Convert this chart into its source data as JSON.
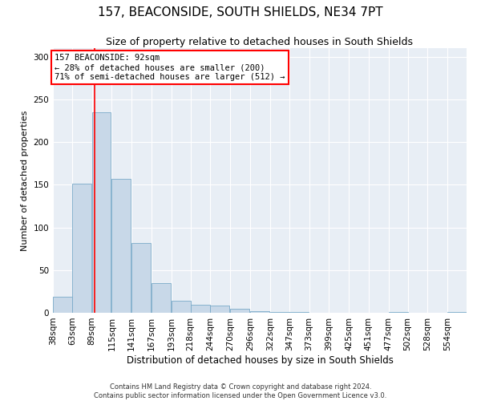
{
  "title": "157, BEACONSIDE, SOUTH SHIELDS, NE34 7PT",
  "subtitle": "Size of property relative to detached houses in South Shields",
  "xlabel": "Distribution of detached houses by size in South Shields",
  "ylabel": "Number of detached properties",
  "footer_line1": "Contains HM Land Registry data © Crown copyright and database right 2024.",
  "footer_line2": "Contains public sector information licensed under the Open Government Licence v3.0.",
  "bar_edges": [
    38,
    63,
    89,
    115,
    141,
    167,
    193,
    218,
    244,
    270,
    296,
    322,
    347,
    373,
    399,
    425,
    451,
    477,
    502,
    528,
    554
  ],
  "bar_values": [
    19,
    151,
    235,
    157,
    82,
    35,
    14,
    9,
    8,
    5,
    2,
    1,
    1,
    0,
    0,
    0,
    0,
    1,
    0,
    0,
    1
  ],
  "bar_color": "#c8d8e8",
  "bar_edge_color": "#7aaac8",
  "property_size": 92,
  "annotation_text": "157 BEACONSIDE: 92sqm\n← 28% of detached houses are smaller (200)\n71% of semi-detached houses are larger (512) →",
  "annotation_box_color": "white",
  "annotation_box_edge_color": "red",
  "vline_color": "red",
  "ylim": [
    0,
    310
  ],
  "yticks": [
    0,
    50,
    100,
    150,
    200,
    250,
    300
  ],
  "background_color": "#e8eef5",
  "grid_color": "white",
  "title_fontsize": 11,
  "subtitle_fontsize": 9,
  "xlabel_fontsize": 8.5,
  "ylabel_fontsize": 8,
  "tick_fontsize": 7.5,
  "annotation_fontsize": 7.5,
  "footer_fontsize": 6
}
